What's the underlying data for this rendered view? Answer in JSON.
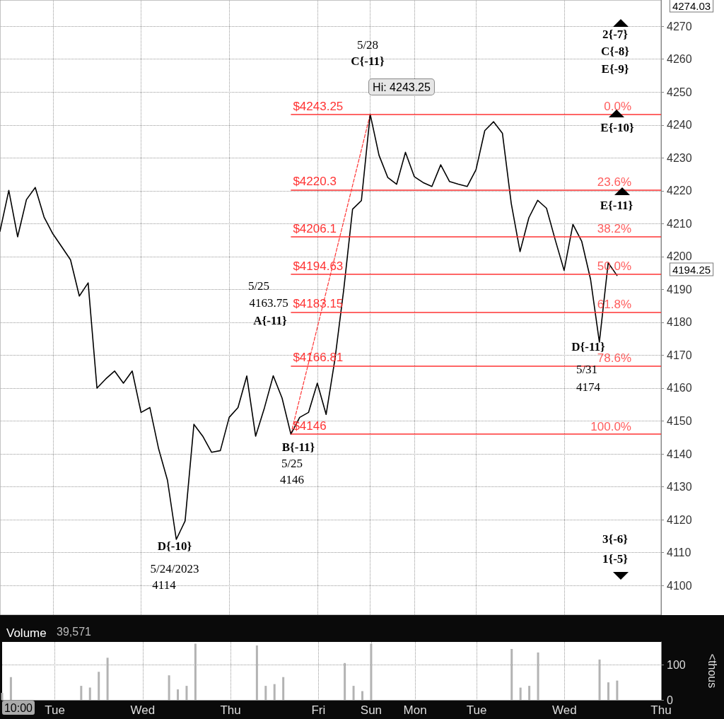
{
  "chart_data": [
    {
      "type": "line",
      "categories": [
        null,
        null,
        null,
        null,
        null,
        null,
        "Tue",
        null,
        null,
        null,
        null,
        null,
        null,
        null,
        null,
        null,
        "Wed",
        null,
        null,
        null,
        null,
        null,
        null,
        null,
        null,
        null,
        "Thu",
        null,
        null,
        null,
        null,
        null,
        null,
        null,
        null,
        null,
        "Fri",
        null,
        null,
        null,
        null,
        null,
        "Sun",
        null,
        null,
        null,
        null,
        "Mon",
        null,
        null,
        null,
        null,
        null,
        null,
        "Tue",
        null,
        null,
        null,
        null,
        null,
        null,
        null,
        null,
        null,
        "Wed",
        null,
        null,
        null,
        null,
        null,
        null,
        null,
        null,
        null,
        null,
        "Thu"
      ],
      "ylim": [
        4091,
        4278
      ],
      "yticks": [
        4100,
        4110,
        4120,
        4130,
        4140,
        4150,
        4160,
        4170,
        4180,
        4190,
        4200,
        4210,
        4220,
        4230,
        4240,
        4250,
        4260,
        4270
      ],
      "grid": true,
      "tick_labels": "y",
      "marker": "none",
      "series": [
        {
          "color": "#000000",
          "values": [
            4207.7,
            4220.1,
            4206,
            4217.3,
            4221,
            4212,
            4206.9,
            4203,
            4199,
            4188,
            4192,
            4160,
            4162.8,
            4165.2,
            4161.5,
            4165.2,
            4152.6,
            4154.1,
            4141.5,
            4132,
            4114,
            4119.6,
            4149,
            4145.4,
            4140.5,
            4141,
            4151.1,
            4154.1,
            4163.7,
            4145.4,
            4154,
            4163.75,
            4157,
            4146,
            4151.1,
            4152.6,
            4161.5,
            4152,
            4168.8,
            4190,
            4214.4,
            4217,
            4243.25,
            4230.8,
            4224,
            4222,
            4231.7,
            4224.3,
            4222.5,
            4221.3,
            4227.9,
            4222.8,
            4222,
            4221.3,
            4226.4,
            4238.3,
            4241,
            4237.5,
            4216.2,
            4201.5,
            4211.8,
            4217.1,
            4214.7,
            4205,
            4195.8,
            4209.8,
            4204.6,
            4193.1,
            4174,
            4198.1,
            4194.25,
            null,
            null,
            null,
            null,
            null
          ]
        },
        {
          "type": "line",
          "color": "#ff3333",
          "line_style": "dashed",
          "values": [
            null,
            null,
            null,
            null,
            null,
            null,
            null,
            null,
            null,
            null,
            null,
            null,
            null,
            null,
            null,
            null,
            null,
            null,
            null,
            null,
            null,
            null,
            null,
            null,
            null,
            null,
            null,
            null,
            null,
            null,
            null,
            null,
            null,
            4146,
            null,
            null,
            null,
            null,
            null,
            null,
            null,
            null,
            4243.25,
            null,
            null,
            null,
            null,
            null,
            null,
            null,
            null,
            null,
            null,
            null,
            null,
            null,
            null,
            null,
            null,
            null,
            null,
            null,
            null,
            null,
            null,
            null,
            null,
            null,
            null,
            null,
            null,
            null,
            null,
            null,
            null,
            null
          ]
        }
      ],
      "ref_lines": [
        {
          "axis": "y",
          "value": 4243.25,
          "label": "$4243.25",
          "color": "#ff3333"
        },
        {
          "axis": "y",
          "value": 4220.3,
          "label": "$4220.3",
          "color": "#ff3333"
        },
        {
          "axis": "y",
          "value": 4206.1,
          "label": "$4206.1",
          "color": "#ff3333"
        },
        {
          "axis": "y",
          "value": 4194.63,
          "label": "$4194.63",
          "color": "#ff3333"
        },
        {
          "axis": "y",
          "value": 4183.15,
          "label": "$4183.15",
          "color": "#ff3333"
        },
        {
          "axis": "y",
          "value": 4166.81,
          "label": "$4166.81",
          "color": "#ff3333"
        },
        {
          "axis": "y",
          "value": 4146,
          "label": "$4146",
          "color": "#ff3333"
        }
      ],
      "annotations": [
        {
          "text": "0.0%",
          "y": 4243.25
        },
        {
          "text": "23.6%",
          "y": 4220.3
        },
        {
          "text": "38.2%",
          "y": 4206.1
        },
        {
          "text": "50.0%",
          "y": 4194.63
        },
        {
          "text": "61.8%",
          "y": 4183.15
        },
        {
          "text": "78.6%",
          "y": 4166.81
        },
        {
          "text": "100.0%",
          "y": 4146
        },
        "D{-10}",
        "5/24/2023",
        "4114",
        "5/25",
        "4163.75",
        "A{-11}",
        "B{-11}",
        "5/25",
        "4146",
        "5/28",
        "C{-11}",
        "Hi: 4243.25",
        "D{-11}",
        "5/31",
        "4174",
        "2{-7}",
        "C{-8}",
        "E{-9}",
        "E{-10}",
        "E{-11}",
        "3{-6}",
        "1{-5}",
        "4274.03",
        "4194.25"
      ]
    },
    {
      "type": "bar",
      "title": "Volume",
      "ylabel": "<thous",
      "color": "#b3b3b3",
      "grid": true,
      "ylim": [
        0,
        165
      ],
      "yticks": [
        0,
        100
      ],
      "values": [
        20,
        65,
        0,
        0,
        0,
        0,
        0,
        0,
        0,
        40,
        35,
        80,
        120,
        0,
        0,
        0,
        0,
        0,
        0,
        70,
        30,
        40,
        160,
        0,
        0,
        0,
        0,
        0,
        0,
        155,
        40,
        45,
        65,
        0,
        0,
        0,
        0,
        0,
        0,
        105,
        40,
        25,
        160,
        0,
        0,
        0,
        0,
        0,
        0,
        0,
        0,
        0,
        0,
        0,
        0,
        0,
        0,
        0,
        145,
        35,
        40,
        135,
        0,
        0,
        0,
        0,
        0,
        0,
        115,
        50,
        55,
        0,
        0,
        0,
        0,
        0
      ],
      "annotations": [
        "39,571",
        "10:00"
      ]
    }
  ]
}
